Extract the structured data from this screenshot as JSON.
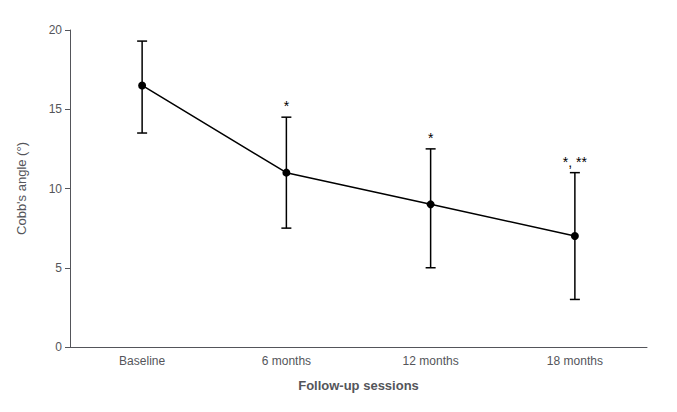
{
  "chart_data": {
    "type": "line",
    "categories": [
      "Baseline",
      "6 months",
      "12 months",
      "18 months"
    ],
    "values": [
      16.5,
      11.0,
      9.0,
      7.0
    ],
    "error_lower": [
      3.0,
      3.5,
      4.0,
      4.0
    ],
    "error_upper": [
      2.8,
      3.5,
      3.5,
      4.0
    ],
    "annotations": [
      null,
      "*",
      "*",
      "*, **"
    ],
    "xlabel": "Follow-up sessions",
    "ylabel": "Cobb's angle (°)",
    "ylim": [
      0,
      20
    ],
    "yticks": [
      0,
      5,
      10,
      15,
      20
    ],
    "color": "#000000",
    "marker": "circle",
    "grid": false
  }
}
